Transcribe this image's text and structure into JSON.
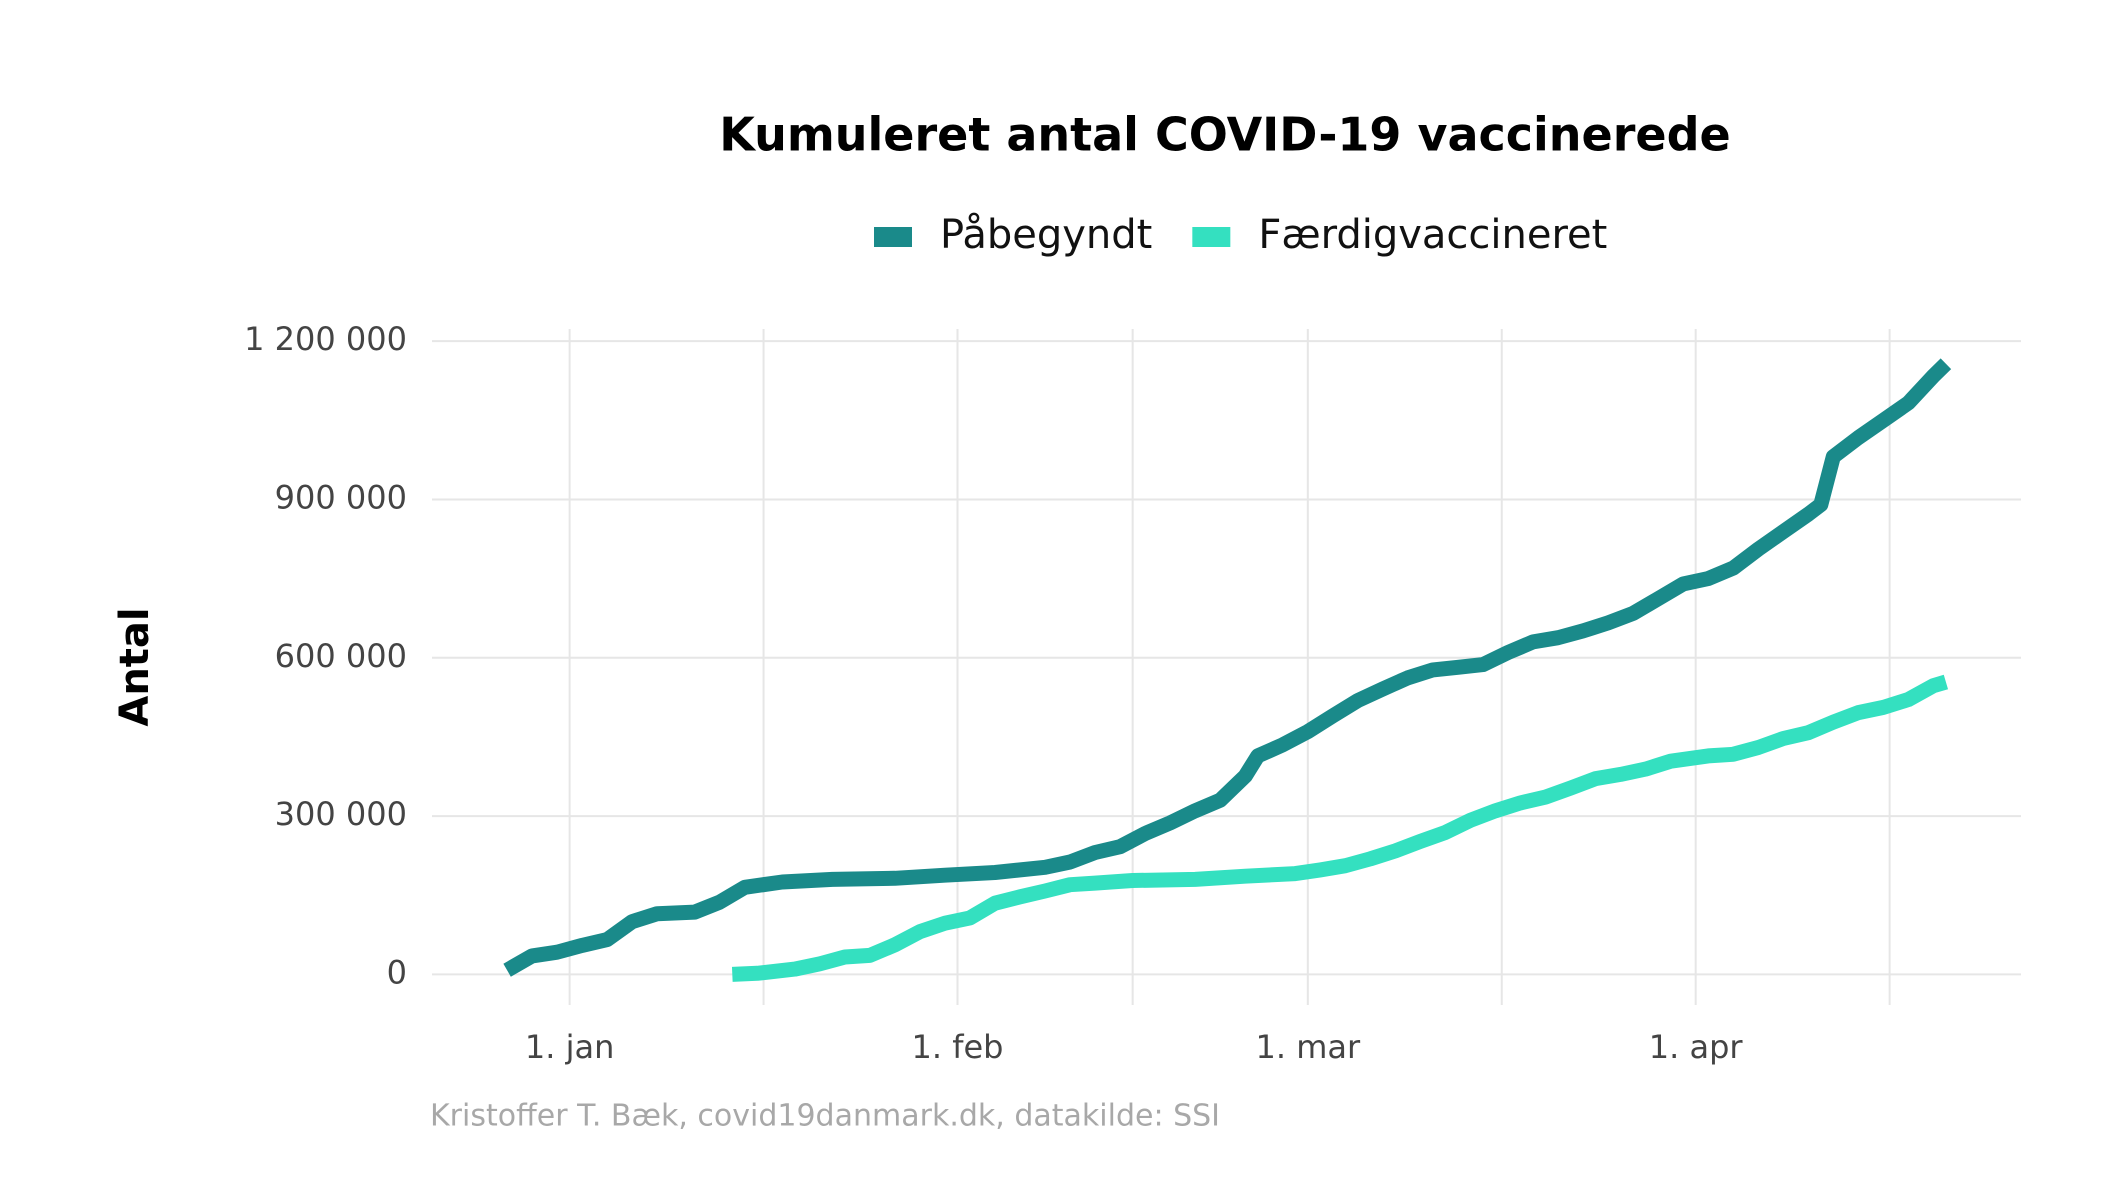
{
  "chart_data": {
    "type": "line",
    "title": "Kumuleret antal COVID-19 vaccinerede",
    "y_label": "Antal",
    "caption": "Kristoffer T. Bæk, covid19danmark.dk, datakilde: SSI",
    "legend": "top",
    "grid": true,
    "xlim": [
      "12-21",
      "04-27"
    ],
    "xticks": [
      {
        "value": "01-01",
        "label": "1. jan"
      },
      {
        "value": "02-01",
        "label": "1. feb"
      },
      {
        "value": "03-01",
        "label": "1. mar"
      },
      {
        "value": "04-01",
        "label": "1. apr"
      }
    ],
    "ylim": [
      -58000,
      1223000
    ],
    "yticks": [
      0,
      {
        "value": 300000,
        "label": "300 000"
      },
      {
        "value": 600000,
        "label": "600 000"
      },
      {
        "value": 900000,
        "label": "900 000"
      },
      {
        "value": 1200000,
        "label": "1 200 000"
      }
    ],
    "series": [
      {
        "name": "Påbegyndt",
        "color": "#1a8a8a",
        "x": [
          "12-27",
          "12-29",
          "12-31",
          "01-02",
          "01-04",
          "01-06",
          "01-08",
          "01-11",
          "01-13",
          "01-15",
          "01-18",
          "01-22",
          "01-27",
          "01-31",
          "02-04",
          "02-08",
          "02-10",
          "02-12",
          "02-14",
          "02-16",
          "02-18",
          "02-20",
          "02-22",
          "02-24",
          "02-25",
          "02-27",
          "03-01",
          "03-03",
          "03-05",
          "03-07",
          "03-09",
          "03-11",
          "03-13",
          "03-15",
          "03-17",
          "03-19",
          "03-21",
          "03-23",
          "03-25",
          "03-27",
          "03-29",
          "03-31",
          "04-02",
          "04-04",
          "04-06",
          "04-08",
          "04-10",
          "04-11",
          "04-12",
          "04-14",
          "04-16",
          "04-18",
          "04-20",
          "04-21"
        ],
        "values": [
          8000,
          35000,
          42000,
          55000,
          66000,
          100000,
          115000,
          118000,
          137000,
          165000,
          175000,
          180000,
          182000,
          188000,
          193000,
          203000,
          213000,
          231000,
          242000,
          267000,
          287000,
          310000,
          330000,
          376000,
          414000,
          435000,
          460000,
          490000,
          519000,
          541000,
          562000,
          577000,
          582000,
          587000,
          610000,
          630000,
          638000,
          651000,
          666000,
          684000,
          712000,
          740000,
          750000,
          770000,
          806000,
          839000,
          872000,
          890000,
          981000,
          1017000,
          1050000,
          1083000,
          1134000,
          1157000
        ]
      },
      {
        "name": "Færdigvaccineret",
        "color": "#34e0c0",
        "x": [
          "01-14",
          "01-16",
          "01-19",
          "01-21",
          "01-23",
          "01-25",
          "01-27",
          "01-29",
          "01-31",
          "02-02",
          "02-04",
          "02-06",
          "02-08",
          "02-10",
          "02-12",
          "02-15",
          "02-20",
          "02-24",
          "02-28",
          "03-02",
          "03-04",
          "03-06",
          "03-08",
          "03-10",
          "03-12",
          "03-14",
          "03-16",
          "03-18",
          "03-20",
          "03-22",
          "03-24",
          "03-26",
          "03-28",
          "03-30",
          "04-02",
          "04-04",
          "04-06",
          "04-08",
          "04-10",
          "04-12",
          "04-14",
          "04-16",
          "04-18",
          "04-20",
          "04-21"
        ],
        "values": [
          0,
          2000,
          10000,
          20000,
          33000,
          36000,
          56000,
          81000,
          97000,
          107000,
          135000,
          147000,
          158000,
          170000,
          173000,
          178000,
          180000,
          186000,
          191000,
          198000,
          206000,
          219000,
          234000,
          252000,
          269000,
          292000,
          310000,
          325000,
          336000,
          353000,
          371000,
          379000,
          389000,
          404000,
          414000,
          417000,
          430000,
          447000,
          458000,
          478000,
          496000,
          506000,
          521000,
          547000,
          554000
        ]
      }
    ]
  }
}
